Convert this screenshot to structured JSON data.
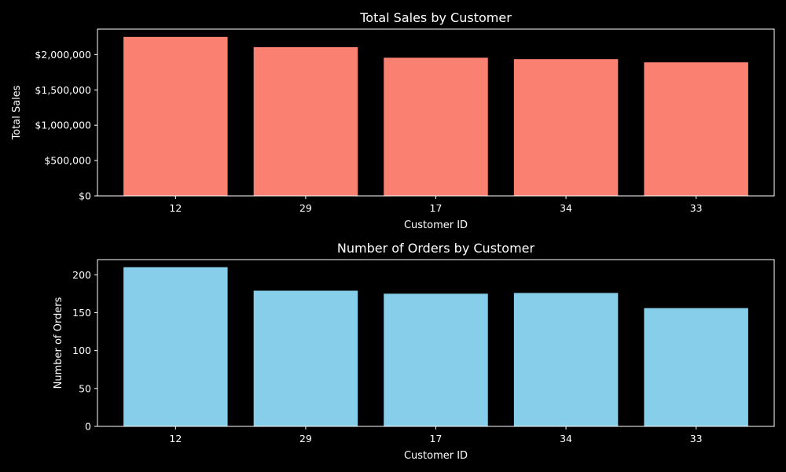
{
  "colors": {
    "background": "#000000",
    "text": "#ffffff",
    "sales_bar": "#fa8072",
    "orders_bar": "#87ceeb"
  },
  "chart_data": [
    {
      "type": "bar",
      "title": "Total Sales by Customer",
      "xlabel": "Customer ID",
      "ylabel": "Total Sales",
      "categories": [
        "12",
        "29",
        "17",
        "34",
        "33"
      ],
      "values": [
        2250000,
        2105000,
        1955000,
        1935000,
        1890000
      ],
      "ylim": [
        0,
        2360000
      ],
      "yticks": [
        0,
        500000,
        1000000,
        1500000,
        2000000
      ],
      "ytick_labels": [
        "$0",
        "$500,000",
        "$1,000,000",
        "$1,500,000",
        "$2,000,000"
      ],
      "grid": false,
      "color": "#fa8072"
    },
    {
      "type": "bar",
      "title": "Number of Orders by Customer",
      "xlabel": "Customer ID",
      "ylabel": "Number of Orders",
      "categories": [
        "12",
        "29",
        "17",
        "34",
        "33"
      ],
      "values": [
        210,
        179,
        175,
        176,
        156
      ],
      "ylim": [
        0,
        220
      ],
      "yticks": [
        0,
        50,
        100,
        150,
        200
      ],
      "ytick_labels": [
        "0",
        "50",
        "100",
        "150",
        "200"
      ],
      "grid": false,
      "color": "#87ceeb"
    }
  ]
}
